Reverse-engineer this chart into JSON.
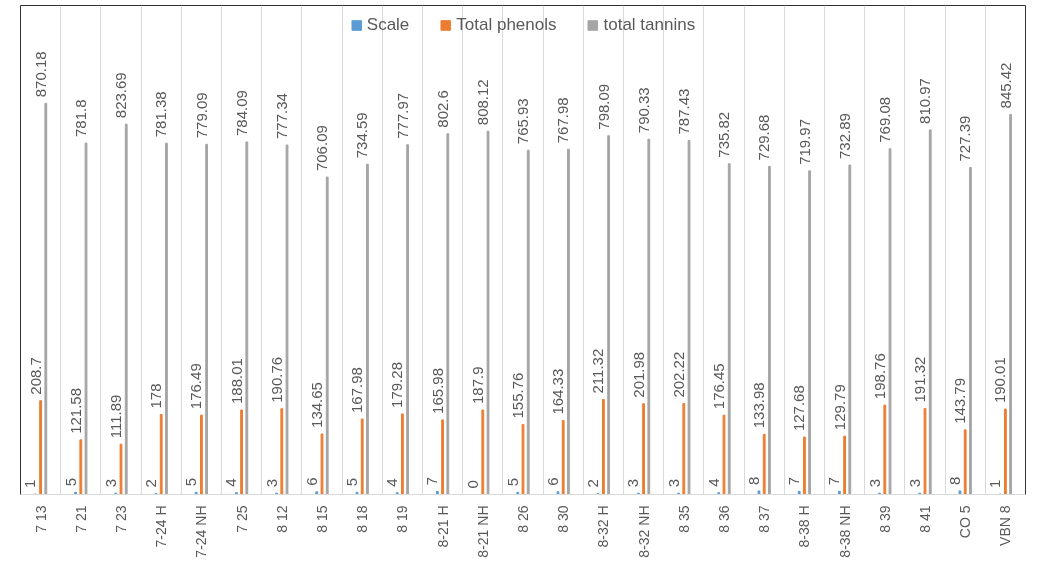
{
  "chart_data": {
    "type": "bar",
    "categories": [
      "7 13",
      "7 21",
      "7 23",
      "7-24 H",
      "7-24 NH",
      "7 25",
      "8 12",
      "8 15",
      "8 18",
      "8 19",
      "8-21 H",
      "8-21 NH",
      "8 26",
      "8 30",
      "8-32 H",
      "8-32 NH",
      "8 35",
      "8 36",
      "8 37",
      "8-38 H",
      "8-38 NH",
      "8 39",
      "8 41",
      "CO 5",
      "VBN 8"
    ],
    "series": [
      {
        "name": "Scale",
        "color": "#5b9bd5",
        "values": [
          1,
          5,
          3,
          2,
          5,
          4,
          3,
          6,
          5,
          4,
          7,
          0,
          5,
          6,
          2,
          3,
          3,
          4,
          8,
          7,
          7,
          3,
          3,
          8,
          1
        ]
      },
      {
        "name": "Total phenols",
        "color": "#ed7d31",
        "values": [
          208.7,
          121.58,
          111.89,
          178,
          176.49,
          188.01,
          190.76,
          134.65,
          167.98,
          179.28,
          165.98,
          187.9,
          155.76,
          164.33,
          211.32,
          201.98,
          202.22,
          176.45,
          133.98,
          127.68,
          129.79,
          198.76,
          191.32,
          143.79,
          190.01
        ]
      },
      {
        "name": "total tannins",
        "color": "#a5a5a5",
        "values": [
          870.18,
          781.8,
          823.69,
          781.38,
          779.09,
          784.09,
          777.34,
          706.09,
          734.59,
          777.97,
          802.6,
          808.12,
          765.93,
          767.98,
          798.09,
          790.33,
          787.43,
          735.82,
          729.68,
          719.97,
          732.89,
          769.08,
          810.97,
          727.39,
          845.42
        ]
      }
    ],
    "data_labels": true,
    "grid": "x",
    "legend": "top",
    "tick_labels": "x"
  }
}
